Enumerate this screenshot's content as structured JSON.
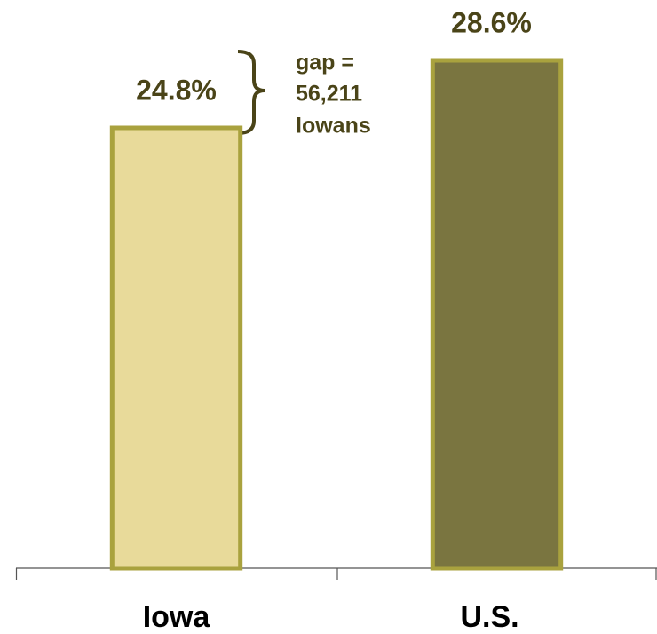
{
  "chart_data": {
    "type": "bar",
    "categories": [
      "Iowa",
      "U.S."
    ],
    "values": [
      24.8,
      28.6
    ],
    "value_labels": [
      "24.8%",
      "28.6%"
    ],
    "colors": [
      "#e8da9a",
      "#7a7540"
    ],
    "edge_color": "#a9a23e",
    "ylim": [
      0,
      32
    ],
    "annotation": [
      "gap =",
      "56,211",
      "Iowans"
    ]
  }
}
